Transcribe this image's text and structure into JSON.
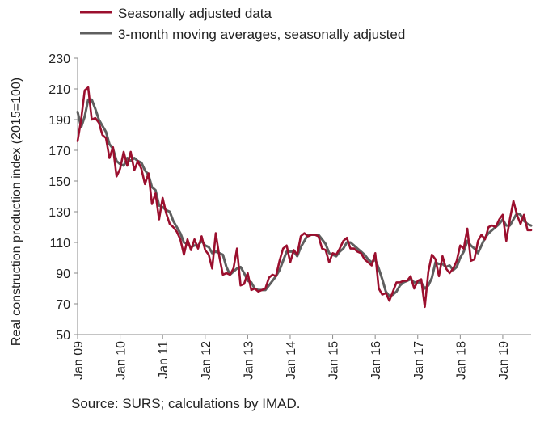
{
  "source": "Source: SURS; calculations by IMAD.",
  "colors": {
    "seasonally_adjusted": "#9b0f2e",
    "moving_average": "#5f5f5f",
    "axis": "#8a8a8a",
    "text": "#222222"
  },
  "chart_data": {
    "type": "line",
    "title": "",
    "xlabel": "",
    "ylabel": "Real construction production index (2015=100)",
    "ylim": [
      50,
      230
    ],
    "yticks": [
      50,
      70,
      90,
      110,
      130,
      150,
      170,
      190,
      210,
      230
    ],
    "xlim": [
      "2009-01",
      "2019-09"
    ],
    "xtick_labels": [
      "Jan 09",
      "Jan 10",
      "Jan 11",
      "Jan 12",
      "Jan 13",
      "Jan 14",
      "Jan 15",
      "Jan 16",
      "Jan 17",
      "Jan 18",
      "Jan 19"
    ],
    "xtick_dates": [
      "2009-01",
      "2010-01",
      "2011-01",
      "2012-01",
      "2013-01",
      "2014-01",
      "2015-01",
      "2016-01",
      "2017-01",
      "2018-01",
      "2019-01"
    ],
    "grid": false,
    "legend": "top-left",
    "x": [
      "2009-01",
      "2009-02",
      "2009-03",
      "2009-04",
      "2009-05",
      "2009-06",
      "2009-07",
      "2009-08",
      "2009-09",
      "2009-10",
      "2009-11",
      "2009-12",
      "2010-01",
      "2010-02",
      "2010-03",
      "2010-04",
      "2010-05",
      "2010-06",
      "2010-07",
      "2010-08",
      "2010-09",
      "2010-10",
      "2010-11",
      "2010-12",
      "2011-01",
      "2011-02",
      "2011-03",
      "2011-04",
      "2011-05",
      "2011-06",
      "2011-07",
      "2011-08",
      "2011-09",
      "2011-10",
      "2011-11",
      "2011-12",
      "2012-01",
      "2012-02",
      "2012-03",
      "2012-04",
      "2012-05",
      "2012-06",
      "2012-07",
      "2012-08",
      "2012-09",
      "2012-10",
      "2012-11",
      "2012-12",
      "2013-01",
      "2013-02",
      "2013-03",
      "2013-04",
      "2013-05",
      "2013-06",
      "2013-07",
      "2013-08",
      "2013-09",
      "2013-10",
      "2013-11",
      "2013-12",
      "2014-01",
      "2014-02",
      "2014-03",
      "2014-04",
      "2014-05",
      "2014-06",
      "2014-07",
      "2014-08",
      "2014-09",
      "2014-10",
      "2014-11",
      "2014-12",
      "2015-01",
      "2015-02",
      "2015-03",
      "2015-04",
      "2015-05",
      "2015-06",
      "2015-07",
      "2015-08",
      "2015-09",
      "2015-10",
      "2015-11",
      "2015-12",
      "2016-01",
      "2016-02",
      "2016-03",
      "2016-04",
      "2016-05",
      "2016-06",
      "2016-07",
      "2016-08",
      "2016-09",
      "2016-10",
      "2016-11",
      "2016-12",
      "2017-01",
      "2017-02",
      "2017-03",
      "2017-04",
      "2017-05",
      "2017-06",
      "2017-07",
      "2017-08",
      "2017-09",
      "2017-10",
      "2017-11",
      "2017-12",
      "2018-01",
      "2018-02",
      "2018-03",
      "2018-04",
      "2018-05",
      "2018-06",
      "2018-07",
      "2018-08",
      "2018-09",
      "2018-10",
      "2018-11",
      "2018-12",
      "2019-01",
      "2019-02",
      "2019-03",
      "2019-04",
      "2019-05",
      "2019-06",
      "2019-07",
      "2019-08",
      "2019-09"
    ],
    "series": [
      {
        "name": "Seasonally adjusted data",
        "color": "#9b0f2e",
        "values": [
          176,
          190,
          209,
          211,
          190,
          191,
          188,
          180,
          178,
          165,
          172,
          153,
          158,
          169,
          160,
          169,
          157,
          163,
          158,
          148,
          155,
          135,
          142,
          125,
          139,
          129,
          122,
          120,
          117,
          112,
          102,
          112,
          105,
          112,
          106,
          114,
          105,
          102,
          93,
          116,
          101,
          89,
          90,
          89,
          93,
          106,
          82,
          83,
          90,
          79,
          80,
          78,
          79,
          80,
          87,
          89,
          88,
          98,
          106,
          108,
          97,
          105,
          102,
          114,
          116,
          114,
          115,
          115,
          114,
          106,
          105,
          97,
          103,
          102,
          106,
          111,
          113,
          106,
          106,
          104,
          103,
          99,
          97,
          95,
          103,
          80,
          76,
          77,
          72,
          78,
          84,
          84,
          85,
          85,
          88,
          80,
          85,
          86,
          68,
          91,
          102,
          99,
          88,
          101,
          93,
          90,
          93,
          98,
          108,
          106,
          119,
          98,
          99,
          111,
          115,
          112,
          120,
          121,
          120,
          125,
          128,
          111,
          125,
          137,
          128,
          122,
          128,
          118,
          118
        ]
      },
      {
        "name": "3-month moving averages, seasonally adjusted",
        "color": "#5f5f5f",
        "values": [
          195,
          185,
          192,
          203,
          203,
          197,
          190,
          186,
          182,
          174,
          171,
          163,
          161,
          160,
          165,
          163,
          165,
          163,
          162,
          157,
          154,
          146,
          144,
          134,
          133,
          131,
          130,
          124,
          120,
          116,
          110,
          109,
          107,
          108,
          108,
          111,
          108,
          107,
          103,
          104,
          103,
          102,
          94,
          89,
          91,
          93,
          94,
          90,
          85,
          84,
          80,
          79,
          79,
          79,
          82,
          85,
          88,
          92,
          98,
          104,
          104,
          104,
          101,
          107,
          111,
          115,
          115,
          115,
          115,
          112,
          109,
          103,
          102,
          101,
          104,
          106,
          110,
          110,
          108,
          106,
          104,
          102,
          99,
          97,
          99,
          93,
          86,
          78,
          75,
          76,
          78,
          82,
          84,
          85,
          86,
          84,
          84,
          84,
          80,
          82,
          87,
          97,
          96,
          96,
          94,
          95,
          92,
          94,
          100,
          104,
          111,
          108,
          106,
          103,
          108,
          113,
          116,
          118,
          120,
          122,
          125,
          121,
          121,
          125,
          129,
          128,
          124,
          122,
          121
        ]
      }
    ]
  }
}
